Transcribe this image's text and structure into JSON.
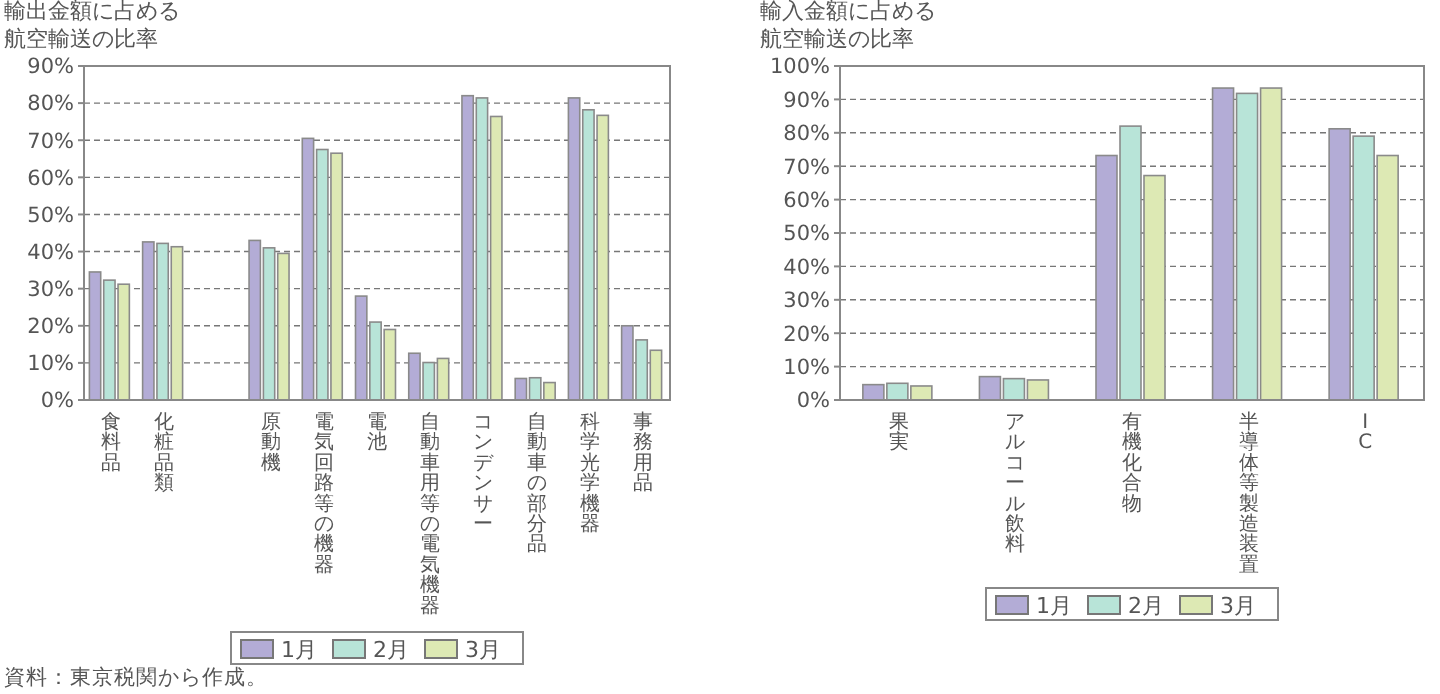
{
  "chart_data": [
    {
      "type": "bar",
      "ylabel": "輸出金額に占める航空輸送の比率",
      "categories": [
        "食料品",
        "化粧品類",
        null,
        "原動機",
        "電気回路等の機器",
        "電池",
        "自動車用等の電気機器",
        "コンデンサー",
        "自動車の部分品",
        "科学光学機器",
        "事務用品"
      ],
      "series": [
        {
          "name": "1月",
          "color": "#b3acd6",
          "values": [
            34.5,
            42.6,
            null,
            43,
            70.5,
            28,
            12.6,
            82,
            5.8,
            81.4,
            20
          ]
        },
        {
          "name": "2月",
          "color": "#b8e4d8",
          "values": [
            32.3,
            42.2,
            null,
            41,
            67.5,
            21,
            10.1,
            81.4,
            6,
            78.2,
            16.2
          ]
        },
        {
          "name": "3月",
          "color": "#dde9b4",
          "values": [
            31.2,
            41.3,
            null,
            39.5,
            66.5,
            19,
            11.2,
            76.4,
            4.7,
            76.7,
            13.4
          ]
        }
      ],
      "ylim": [
        0,
        90
      ],
      "yticks": [
        {
          "value": 0,
          "label": "0%"
        },
        {
          "value": 10,
          "label": "10%"
        },
        {
          "value": 20,
          "label": "20%"
        },
        {
          "value": 30,
          "label": "30%"
        },
        {
          "value": 40,
          "label": "40%"
        },
        {
          "value": 50,
          "label": "50%"
        },
        {
          "value": 60,
          "label": "60%"
        },
        {
          "value": 70,
          "label": "70%"
        },
        {
          "value": 80,
          "label": "80%"
        },
        {
          "value": 90,
          "label": "90%"
        }
      ],
      "grid": "y",
      "legend": "bottom",
      "annotations": [
        "資料：東京税関から作成。"
      ]
    },
    {
      "type": "bar",
      "ylabel": "輸入金額に占める航空輸送の比率",
      "categories": [
        "果実",
        "アルコール飲料",
        "有機化合物",
        "半導体等製造装置",
        "IC"
      ],
      "series": [
        {
          "name": "1月",
          "color": "#b3acd6",
          "values": [
            4.6,
            7,
            73.2,
            93.4,
            81.2
          ]
        },
        {
          "name": "2月",
          "color": "#b8e4d8",
          "values": [
            5,
            6.4,
            82,
            91.8,
            79
          ]
        },
        {
          "name": "3月",
          "color": "#dde9b4",
          "values": [
            4.2,
            6,
            67.2,
            93.4,
            73.2
          ]
        }
      ],
      "ylim": [
        0,
        100
      ],
      "yticks": [
        {
          "value": 0,
          "label": "0%"
        },
        {
          "value": 10,
          "label": "10%"
        },
        {
          "value": 20,
          "label": "20%"
        },
        {
          "value": 30,
          "label": "30%"
        },
        {
          "value": 40,
          "label": "40%"
        },
        {
          "value": 50,
          "label": "50%"
        },
        {
          "value": 60,
          "label": "60%"
        },
        {
          "value": 70,
          "label": "70%"
        },
        {
          "value": 80,
          "label": "80%"
        },
        {
          "value": 90,
          "label": "90%"
        },
        {
          "value": 100,
          "label": "100%"
        }
      ],
      "grid": "y",
      "legend": "bottom"
    }
  ]
}
